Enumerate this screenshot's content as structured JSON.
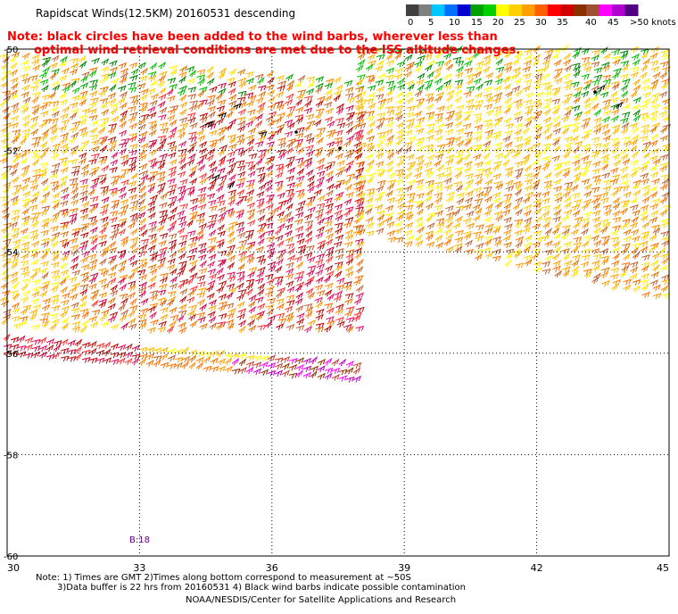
{
  "title": "Rapidscat Winds(12.5KM) 20160531 descending",
  "warning": {
    "line1": "Note: black circles have been added to the wind barbs, wherever less than",
    "line2": "optimal wind retrieval conditions are met due to the ISS altitude changes."
  },
  "legend": {
    "labels": [
      "0",
      "5",
      "10",
      "15",
      "20",
      "25",
      "30",
      "35",
      "40",
      "45",
      ">50 knots"
    ],
    "colors": [
      "#404040",
      "#808080",
      "#00c8ff",
      "#0070ff",
      "#0000d0",
      "#00a000",
      "#00d000",
      "#ffff00",
      "#ffd000",
      "#ffa000",
      "#ff6000",
      "#ff0000",
      "#d00000",
      "#8b3000",
      "#a05030",
      "#ff00ff",
      "#b000d0",
      "#500080"
    ]
  },
  "axes": {
    "x_ticks": [
      "30",
      "33",
      "36",
      "39",
      "42",
      "45"
    ],
    "y_ticks": [
      "-50",
      "-52",
      "-54",
      "-56",
      "-58",
      "-60"
    ]
  },
  "pass_label": "B:18",
  "footer": {
    "note1": "Note: 1) Times are GMT 2)Times along bottom correspond to measurement at ~50S",
    "note2": "3)Data buffer is 22 hrs from 20160531 4) Black wind barbs indicate possible contamination",
    "credit": "NOAA/NESDIS/Center for Satellite Applications and Research"
  }
}
